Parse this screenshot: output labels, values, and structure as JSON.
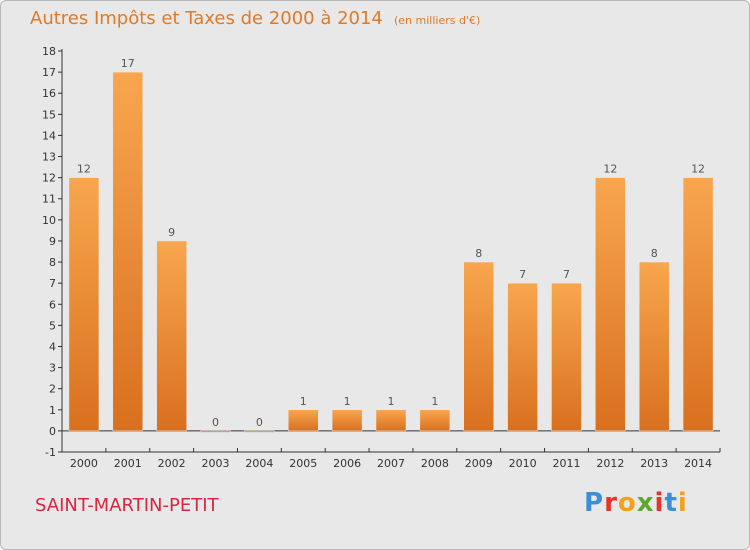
{
  "title": "Autres Impôts et Taxes de 2000 à 2014",
  "unit_note": "(en milliers d'€)",
  "commune": "SAINT-MARTIN-PETIT",
  "brand": {
    "text": "Proxiti",
    "letter_colors": [
      "#3a8fd8",
      "#e8332a",
      "#f2a216",
      "#5aa832",
      "#e8332a",
      "#3a8fd8",
      "#f2a216"
    ]
  },
  "colors": {
    "bar_light": "#f8a64f",
    "bar_dark": "#d9701e",
    "title": "#e07a26",
    "commune": "#d9253f"
  },
  "chart_data": {
    "type": "bar",
    "title": "Autres Impôts et Taxes de 2000 à 2014",
    "subtitle": "(en milliers d'€)",
    "xlabel": "",
    "ylabel": "",
    "categories": [
      "2000",
      "2001",
      "2002",
      "2003",
      "2004",
      "2005",
      "2006",
      "2007",
      "2008",
      "2009",
      "2010",
      "2011",
      "2012",
      "2013",
      "2014"
    ],
    "values": [
      12,
      17,
      9,
      0,
      0,
      1,
      1,
      1,
      1,
      8,
      7,
      7,
      12,
      8,
      12
    ],
    "data_labels": [
      "12",
      "17",
      "9",
      "0",
      "0",
      "1",
      "1",
      "1",
      "1",
      "8",
      "7",
      "7",
      "12",
      "8",
      "12"
    ],
    "ylim": [
      -1,
      18
    ],
    "yticks": [
      -1,
      0,
      1,
      2,
      3,
      4,
      5,
      6,
      7,
      8,
      9,
      10,
      11,
      12,
      13,
      14,
      15,
      16,
      17,
      18
    ],
    "ytick_labels": [
      "-1",
      "0",
      "1",
      "2",
      "3",
      "4",
      "5",
      "6",
      "7",
      "8",
      "9",
      "10",
      "11",
      "12",
      "13",
      "14",
      "15",
      "16",
      "17",
      "18"
    ],
    "grid": false,
    "legend": "none"
  }
}
